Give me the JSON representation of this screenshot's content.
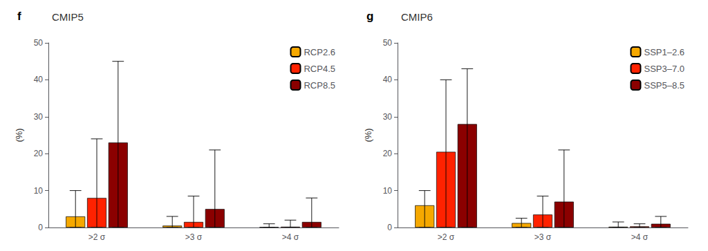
{
  "chart_data": [
    {
      "type": "bar",
      "title": "CMIP5",
      "annotations": [
        "f"
      ],
      "categories": [
        ">2 σ",
        ">3 σ",
        ">4 σ"
      ],
      "series": [
        {
          "name": "RCP2.6",
          "color": "#F5A800",
          "values": [
            3.0,
            0.5,
            0.1
          ],
          "err_upper": [
            10.0,
            3.0,
            1.0
          ]
        },
        {
          "name": "RCP4.5",
          "color": "#FF2200",
          "values": [
            8.0,
            1.5,
            0.2
          ],
          "err_upper": [
            24.0,
            8.5,
            2.0
          ]
        },
        {
          "name": "RCP8.5",
          "color": "#8B0000",
          "values": [
            23.0,
            5.0,
            1.5
          ],
          "err_upper": [
            45.0,
            21.0,
            8.0
          ]
        }
      ],
      "ylabel": "(%)",
      "ylim": [
        0,
        50
      ],
      "yticks": [
        0,
        10,
        20,
        30,
        40,
        50
      ],
      "grid": false,
      "legend": "upper right"
    },
    {
      "type": "bar",
      "title": "CMIP6",
      "annotations": [
        "g"
      ],
      "categories": [
        ">2 σ",
        ">3 σ",
        ">4 σ"
      ],
      "series": [
        {
          "name": "SSP1–2.6",
          "color": "#F5A800",
          "values": [
            6.0,
            1.2,
            0.2
          ],
          "err_upper": [
            10.0,
            2.5,
            1.5
          ]
        },
        {
          "name": "SSP3–7.0",
          "color": "#FF2200",
          "values": [
            20.5,
            3.5,
            0.3
          ],
          "err_upper": [
            40.0,
            8.5,
            1.0
          ]
        },
        {
          "name": "SSP5–8.5",
          "color": "#8B0000",
          "values": [
            28.0,
            7.0,
            1.0
          ],
          "err_upper": [
            43.0,
            21.0,
            3.0
          ]
        }
      ],
      "ylabel": "(%)",
      "ylim": [
        0,
        50
      ],
      "yticks": [
        0,
        10,
        20,
        30,
        40,
        50
      ],
      "grid": false,
      "legend": "upper right"
    }
  ]
}
